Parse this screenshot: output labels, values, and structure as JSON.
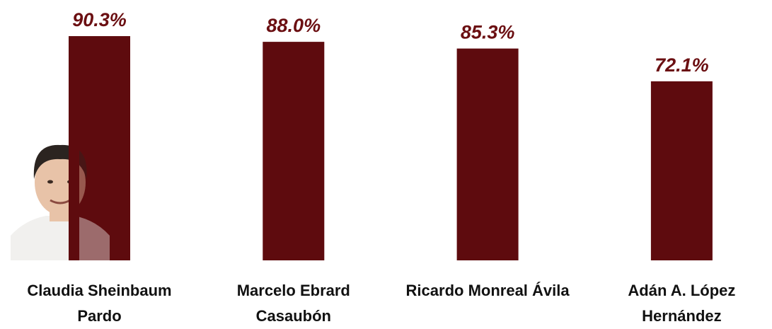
{
  "chart_data": {
    "type": "bar",
    "categories": [
      "Claudia Sheinbaum Pardo",
      "Marcelo Ebrard Casaubón",
      "Ricardo Monreal Ávila",
      "Adán A. López Hernández"
    ],
    "values": [
      90.3,
      88.0,
      85.3,
      72.1
    ],
    "value_labels": [
      "90.3%",
      "88.0%",
      "85.3%",
      "72.1%"
    ],
    "color": "#5e0b0e"
  }
}
